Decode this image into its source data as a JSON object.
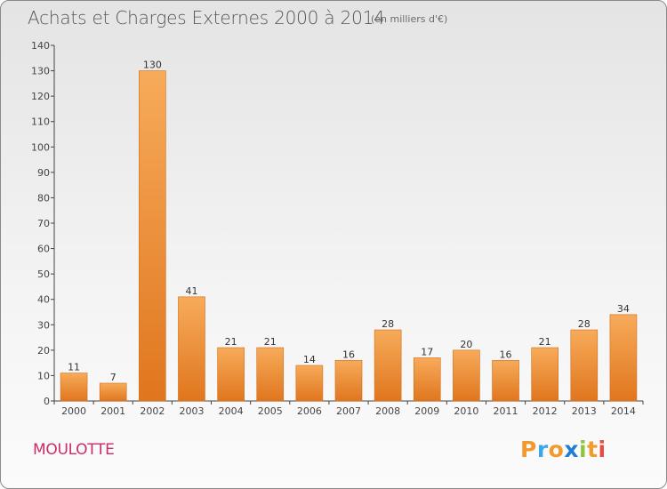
{
  "header": {
    "title": "Achats et Charges Externes 2000 à 2014",
    "unit_note": "(en milliers d'€)"
  },
  "commune": "MOULOTTE",
  "logo": {
    "letters": [
      "P",
      "r",
      "o",
      "x",
      "i",
      "t",
      "i"
    ],
    "colors": [
      "#f29a2e",
      "#3aa7e6",
      "#f29a2e",
      "#1f7fd0",
      "#8cc63f",
      "#f29a2e",
      "#e84c3d"
    ]
  },
  "colors": {
    "bar_top": "#f7ab5a",
    "bar_bottom": "#e0761e",
    "bar_stroke": "#d06e1c",
    "axis": "#444444",
    "commune": "#cc2c6b"
  },
  "chart_data": {
    "type": "bar",
    "categories": [
      "2000",
      "2001",
      "2002",
      "2003",
      "2004",
      "2005",
      "2006",
      "2007",
      "2008",
      "2009",
      "2010",
      "2011",
      "2012",
      "2013",
      "2014"
    ],
    "values": [
      11,
      7,
      130,
      41,
      21,
      21,
      14,
      16,
      28,
      17,
      20,
      16,
      21,
      28,
      34
    ],
    "title": "Achats et Charges Externes 2000 à 2014",
    "subtitle": "(en milliers d'€)",
    "xlabel": "",
    "ylabel": "",
    "ylim": [
      0,
      140
    ],
    "yticks": [
      0,
      10,
      20,
      30,
      40,
      50,
      60,
      70,
      80,
      90,
      100,
      110,
      120,
      130,
      140
    ],
    "grid": false,
    "legend": "none"
  }
}
